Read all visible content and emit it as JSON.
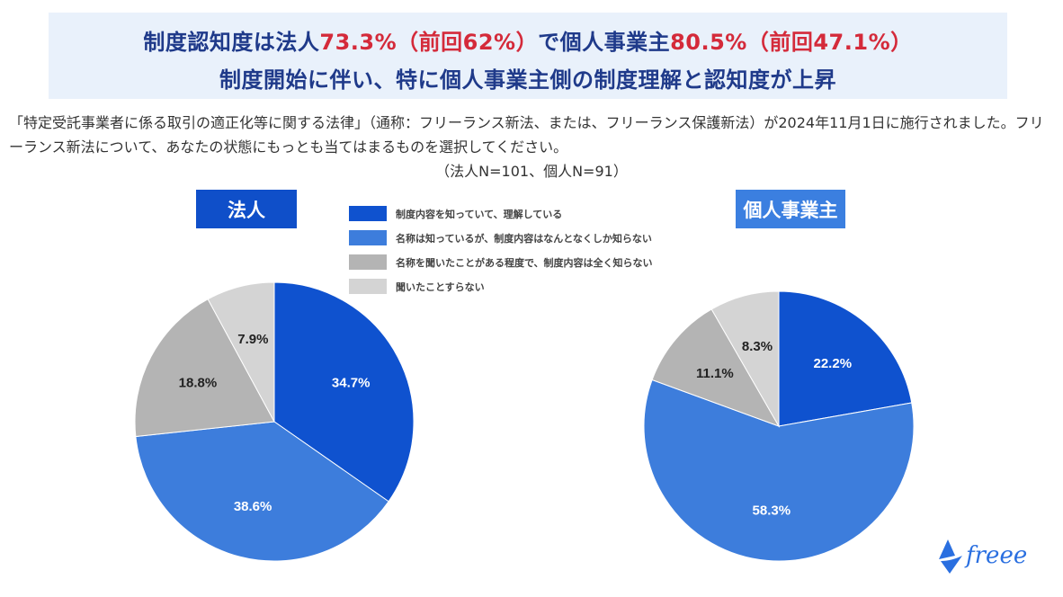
{
  "headline": {
    "line1": [
      {
        "text": "制度認知度は法人",
        "highlight": false
      },
      {
        "text": "73.3%（前回62%）",
        "highlight": true
      },
      {
        "text": "で個人事業主",
        "highlight": false
      },
      {
        "text": "80.5%（前回47.1%）",
        "highlight": true
      }
    ],
    "line2": "制度開始に伴い、特に個人事業主側の制度理解と認知度が上昇"
  },
  "question": "「特定受託事業者に係る取引の適正化等に関する法律」（通称：フリーランス新法、または、フリーランス保護新法）が2024年11月1日に施行されました。フリーランス新法について、あなたの状態にもっとも当てはまるものを選択してください。",
  "sample_note": "（法人N=101、個人N=91）",
  "colors": {
    "headline_text": "#1f3a8a",
    "highlight": "#d42a3a",
    "headline_bg": "#e9f1fb",
    "label_corp_bg": "#0f4fc9",
    "label_indiv_bg": "#3b7fe0"
  },
  "logo": {
    "text": "freee",
    "color": "#2a6fe0"
  },
  "chart_data": [
    {
      "type": "pie",
      "title": "法人",
      "legend_position": "top-center",
      "categories": [
        "制度内容を知っていて、理解している",
        "名称は知っているが、制度内容はなんとなくしか知らない",
        "名称を聞いたことがある程度で、制度内容は全く知らない",
        "聞いたことすらない"
      ],
      "values": [
        34.7,
        38.6,
        18.8,
        7.9
      ],
      "labels": [
        "34.7%",
        "38.6%",
        "18.8%",
        "7.9%"
      ],
      "colors": [
        "#0f52cf",
        "#3d7ddc",
        "#b4b4b4",
        "#d4d4d4"
      ]
    },
    {
      "type": "pie",
      "title": "個人事業主",
      "legend_position": "top-center",
      "categories": [
        "制度内容を知っていて、理解している",
        "名称は知っているが、制度内容はなんとなくしか知らない",
        "名称を聞いたことがある程度で、制度内容は全く知らない",
        "聞いたことすらない"
      ],
      "values": [
        22.2,
        58.3,
        11.1,
        8.3
      ],
      "labels": [
        "22.2%",
        "58.3%",
        "11.1%",
        "8.3%"
      ],
      "colors": [
        "#0f52cf",
        "#3d7ddc",
        "#b4b4b4",
        "#d4d4d4"
      ]
    }
  ]
}
